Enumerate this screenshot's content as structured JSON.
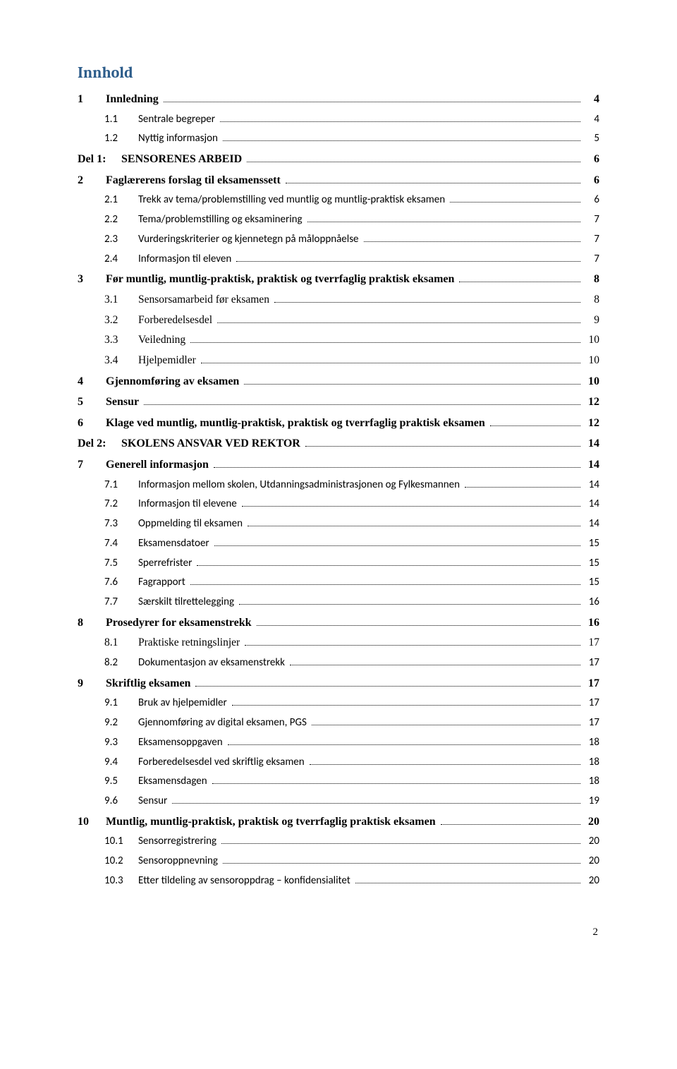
{
  "title": "Innhold",
  "page_number": "2",
  "colors": {
    "title": "#2c5c8a",
    "text": "#000000",
    "background": "#ffffff"
  },
  "toc": [
    {
      "level": "lvl1",
      "num": "1",
      "text": "Innledning",
      "page": "4",
      "font": "times"
    },
    {
      "level": "lvl2",
      "num": "1.1",
      "text": "Sentrale begreper",
      "page": "4",
      "font": "calibri"
    },
    {
      "level": "lvl2",
      "num": "1.2",
      "text": "Nyttig informasjon",
      "page": "5",
      "font": "calibri"
    },
    {
      "level": "del",
      "num": "Del 1:",
      "text": "SENSORENES ARBEID",
      "page": "6",
      "font": "times"
    },
    {
      "level": "lvl1",
      "num": "2",
      "text": "Faglærerens forslag til eksamenssett",
      "page": "6",
      "font": "times"
    },
    {
      "level": "lvl2",
      "num": "2.1",
      "text": "Trekk av tema/problemstilling ved muntlig og muntlig-praktisk eksamen",
      "page": "6",
      "font": "calibri"
    },
    {
      "level": "lvl2",
      "num": "2.2",
      "text": "Tema/problemstilling og eksaminering",
      "page": "7",
      "font": "calibri"
    },
    {
      "level": "lvl2",
      "num": "2.3",
      "text": "Vurderingskriterier og kjennetegn på måloppnåelse",
      "page": "7",
      "font": "calibri"
    },
    {
      "level": "lvl2",
      "num": "2.4",
      "text": "Informasjon til eleven",
      "page": "7",
      "font": "calibri"
    },
    {
      "level": "lvl1",
      "num": "3",
      "text": "Før muntlig, muntlig-praktisk, praktisk og tverrfaglig praktisk eksamen",
      "page": "8",
      "font": "times"
    },
    {
      "level": "lvl2",
      "num": "3.1",
      "text": "Sensorsamarbeid før eksamen",
      "page": "8",
      "font": "times"
    },
    {
      "level": "lvl2",
      "num": "3.2",
      "text": "Forberedelsesdel",
      "page": "9",
      "font": "times"
    },
    {
      "level": "lvl2",
      "num": "3.3",
      "text": "Veiledning",
      "page": "10",
      "font": "times"
    },
    {
      "level": "lvl2",
      "num": "3.4",
      "text": "Hjelpemidler",
      "page": "10",
      "font": "times"
    },
    {
      "level": "lvl1",
      "num": "4",
      "text": "Gjennomføring av eksamen",
      "page": "10",
      "font": "times"
    },
    {
      "level": "lvl1",
      "num": "5",
      "text": "Sensur",
      "page": "12",
      "font": "times"
    },
    {
      "level": "lvl1",
      "num": "6",
      "text": "Klage ved muntlig, muntlig-praktisk, praktisk og tverrfaglig praktisk eksamen",
      "page": "12",
      "font": "times"
    },
    {
      "level": "del",
      "num": "Del 2:",
      "text": "SKOLENS ANSVAR VED REKTOR",
      "page": "14",
      "font": "times"
    },
    {
      "level": "lvl1",
      "num": "7",
      "text": "Generell informasjon",
      "page": "14",
      "font": "times"
    },
    {
      "level": "lvl2",
      "num": "7.1",
      "text": "Informasjon mellom skolen, Utdanningsadministrasjonen og Fylkesmannen",
      "page": "14",
      "font": "calibri"
    },
    {
      "level": "lvl2",
      "num": "7.2",
      "text": "Informasjon til elevene",
      "page": "14",
      "font": "calibri"
    },
    {
      "level": "lvl2",
      "num": "7.3",
      "text": "Oppmelding til eksamen",
      "page": "14",
      "font": "calibri"
    },
    {
      "level": "lvl2",
      "num": "7.4",
      "text": "Eksamensdatoer",
      "page": "15",
      "font": "calibri"
    },
    {
      "level": "lvl2",
      "num": "7.5",
      "text": "Sperrefrister",
      "page": "15",
      "font": "calibri"
    },
    {
      "level": "lvl2",
      "num": "7.6",
      "text": "Fagrapport",
      "page": "15",
      "font": "calibri"
    },
    {
      "level": "lvl2",
      "num": "7.7",
      "text": "Særskilt tilrettelegging",
      "page": "16",
      "font": "calibri"
    },
    {
      "level": "lvl1",
      "num": "8",
      "text": "Prosedyrer for eksamenstrekk",
      "page": "16",
      "font": "times"
    },
    {
      "level": "lvl2",
      "num": "8.1",
      "text": "Praktiske retningslinjer",
      "page": "17",
      "font": "times"
    },
    {
      "level": "lvl2",
      "num": "8.2",
      "text": "Dokumentasjon av eksamenstrekk",
      "page": "17",
      "font": "calibri"
    },
    {
      "level": "lvl1",
      "num": "9",
      "text": "Skriftlig eksamen",
      "page": "17",
      "font": "times"
    },
    {
      "level": "lvl2",
      "num": "9.1",
      "text": "Bruk av hjelpemidler",
      "page": "17",
      "font": "calibri"
    },
    {
      "level": "lvl2",
      "num": "9.2",
      "text": "Gjennomføring av digital eksamen, PGS",
      "page": "17",
      "font": "calibri"
    },
    {
      "level": "lvl2",
      "num": "9.3",
      "text": "Eksamensoppgaven",
      "page": "18",
      "font": "calibri"
    },
    {
      "level": "lvl2",
      "num": "9.4",
      "text": "Forberedelsesdel ved skriftlig eksamen",
      "page": "18",
      "font": "calibri"
    },
    {
      "level": "lvl2",
      "num": "9.5",
      "text": "Eksamensdagen",
      "page": "18",
      "font": "calibri"
    },
    {
      "level": "lvl2",
      "num": "9.6",
      "text": "Sensur",
      "page": "19",
      "font": "calibri"
    },
    {
      "level": "lvl1",
      "num": "10",
      "text": "Muntlig, muntlig-praktisk, praktisk og tverrfaglig praktisk eksamen",
      "page": "20",
      "font": "times"
    },
    {
      "level": "lvl2",
      "num": "10.1",
      "text": "Sensorregistrering",
      "page": "20",
      "font": "calibri"
    },
    {
      "level": "lvl2",
      "num": "10.2",
      "text": "Sensoroppnevning",
      "page": "20",
      "font": "calibri"
    },
    {
      "level": "lvl2",
      "num": "10.3",
      "text": "Etter tildeling av sensoroppdrag – konfidensialitet",
      "page": "20",
      "font": "calibri"
    }
  ]
}
